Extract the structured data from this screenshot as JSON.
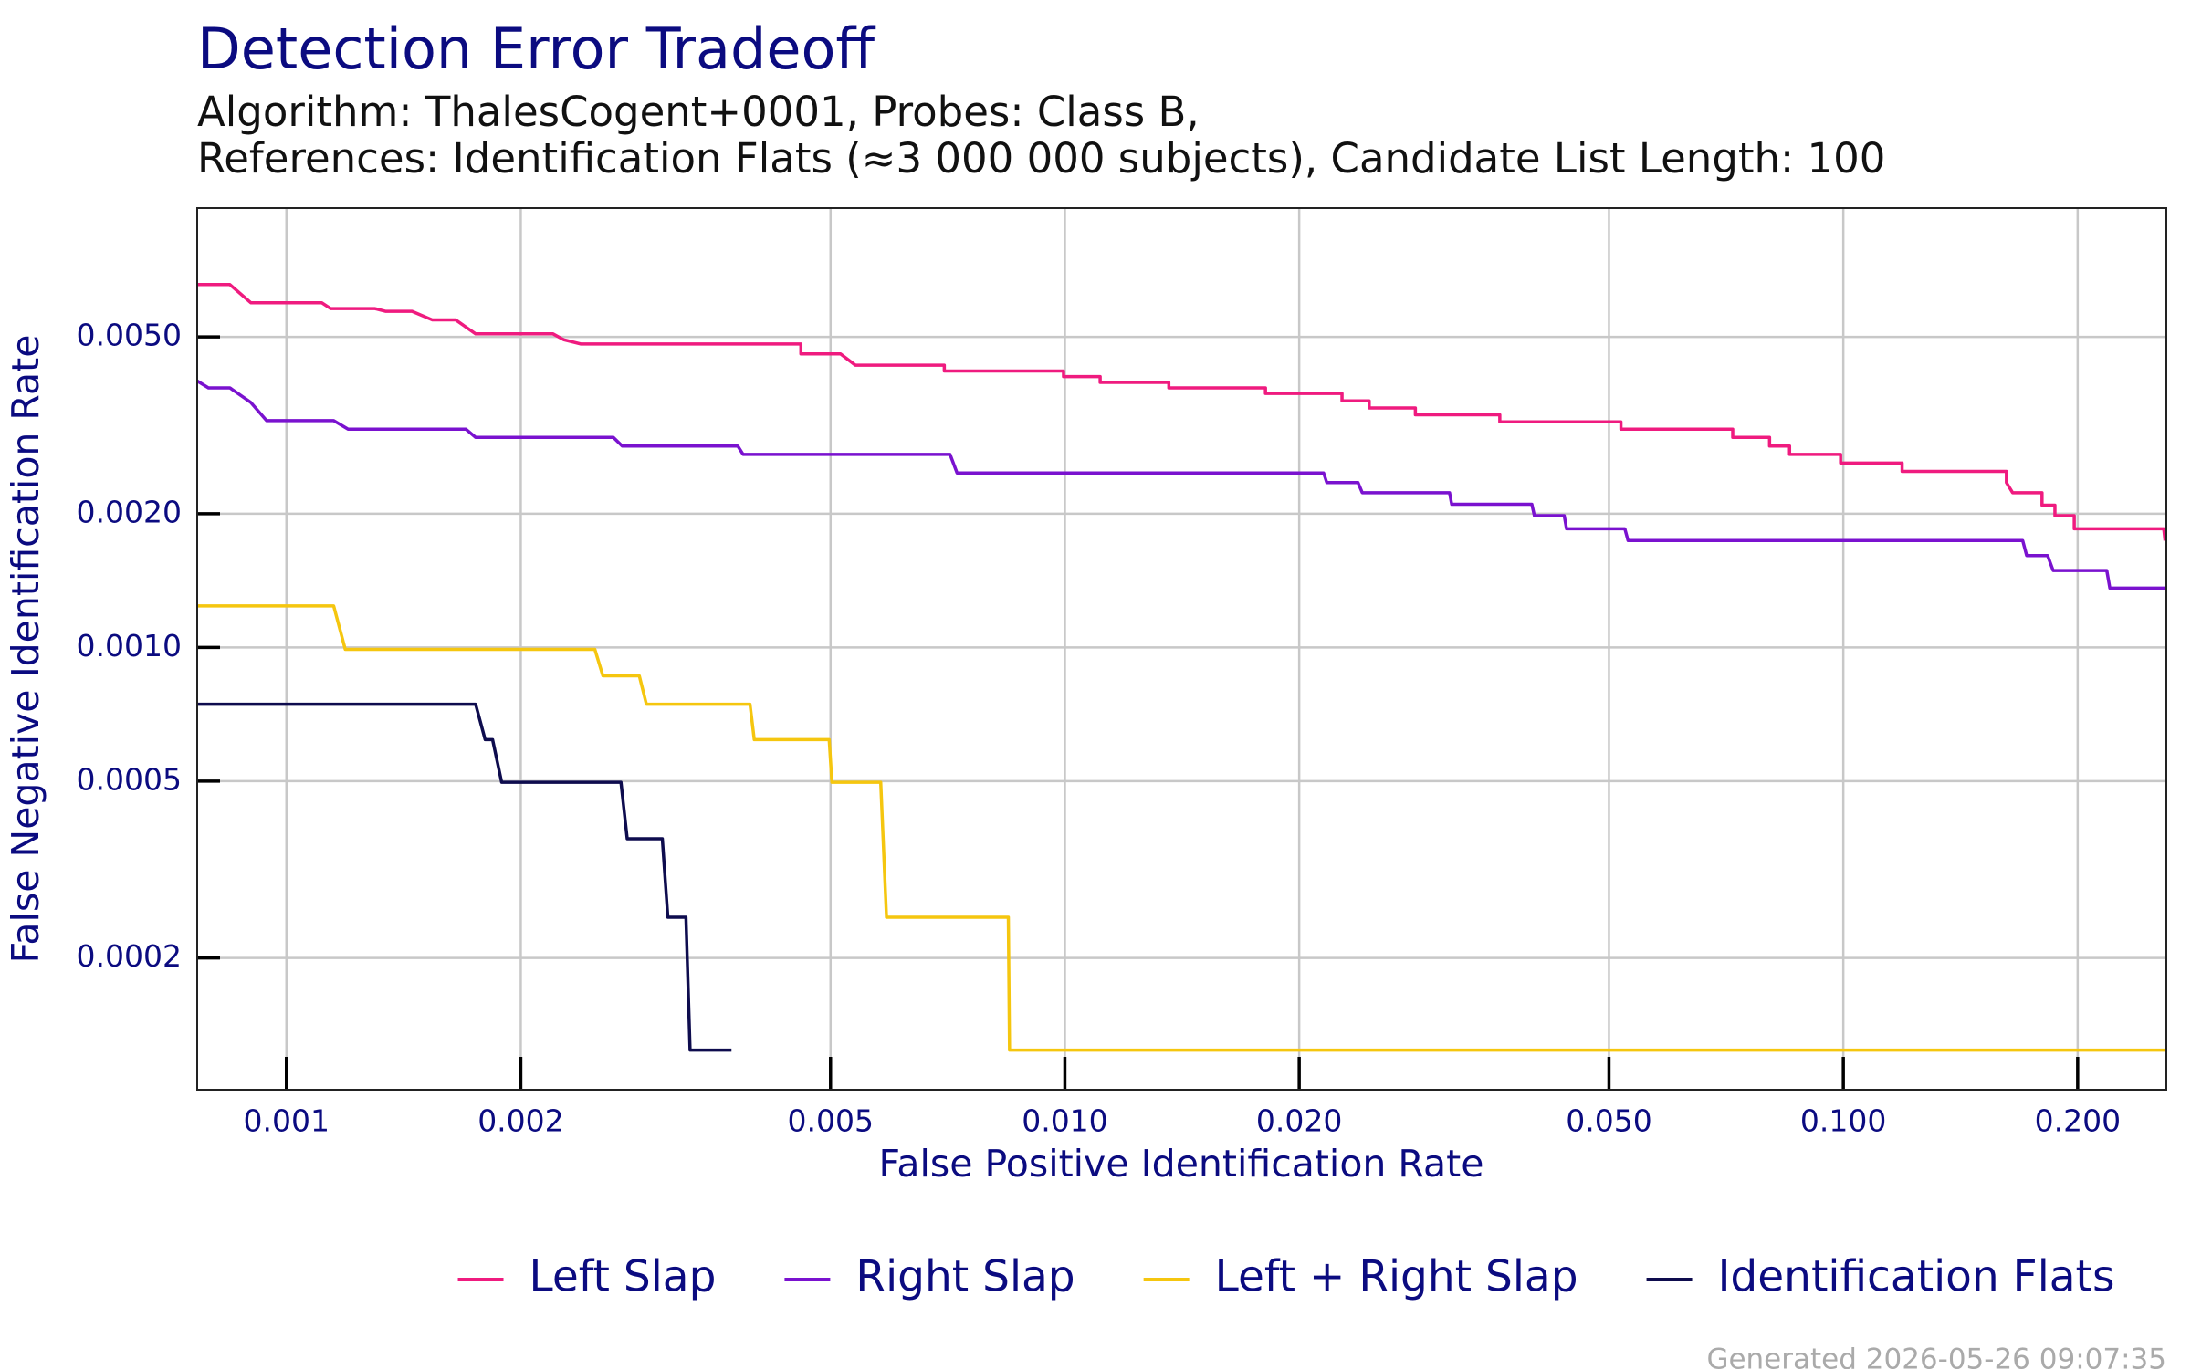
{
  "chart_data": {
    "type": "line",
    "title": "Detection Error Tradeoff",
    "subtitle": [
      "Algorithm: ThalesCogent+0001, Probes: Class B,",
      "References: Identification Flats (≈3 000 000 subjects), Candidate List Length: 100"
    ],
    "x_label": "False Positive Identification Rate",
    "y_label": "False Negative Identification Rate",
    "footnote": "Generated 2026-05-26 09:07:35",
    "xscale": "log",
    "yscale": "log",
    "grid": true,
    "legend": "bottom",
    "xlim": [
      0.000768,
      0.26
    ],
    "ylim": [
      0.000101,
      0.00975
    ],
    "xticks": [
      0.001,
      0.002,
      0.005,
      {
        "value": 0.01,
        "label": "0.010"
      },
      {
        "value": 0.02,
        "label": "0.020"
      },
      {
        "value": 0.05,
        "label": "0.050"
      },
      {
        "value": 0.1,
        "label": "0.100"
      },
      {
        "value": 0.2,
        "label": "0.200"
      }
    ],
    "yticks": [
      0.0002,
      0.0005,
      {
        "value": 0.001,
        "label": "0.0010"
      },
      {
        "value": 0.002,
        "label": "0.0020"
      },
      {
        "value": 0.005,
        "label": "0.0050"
      }
    ],
    "series": [
      {
        "name": "Left Slap",
        "color": "#ef1b7f",
        "x": [
          0.000768,
          0.000846,
          0.0009,
          0.00111,
          0.00114,
          0.0013,
          0.00134,
          0.00145,
          0.00154,
          0.00165,
          0.00175,
          0.0022,
          0.00227,
          0.00239,
          0.00458,
          0.00458,
          0.00515,
          0.00538,
          0.007,
          0.007,
          0.00996,
          0.00996,
          0.0111,
          0.0111,
          0.0136,
          0.0136,
          0.0181,
          0.0181,
          0.0227,
          0.0227,
          0.0246,
          0.0246,
          0.0282,
          0.0282,
          0.0362,
          0.0362,
          0.0518,
          0.0518,
          0.0721,
          0.0721,
          0.0804,
          0.0804,
          0.0853,
          0.0853,
          0.0992,
          0.0992,
          0.119,
          0.119,
          0.162,
          0.162,
          0.165,
          0.18,
          0.18,
          0.187,
          0.187,
          0.198,
          0.198,
          0.258,
          0.259
        ],
        "values": [
          0.00656,
          0.00656,
          0.00597,
          0.00597,
          0.00579,
          0.00579,
          0.00571,
          0.00571,
          0.00546,
          0.00546,
          0.00508,
          0.00508,
          0.00493,
          0.00482,
          0.00482,
          0.00458,
          0.00458,
          0.00432,
          0.00432,
          0.00419,
          0.00419,
          0.00407,
          0.00407,
          0.00395,
          0.00395,
          0.00384,
          0.00384,
          0.00373,
          0.00373,
          0.00359,
          0.00359,
          0.00346,
          0.00346,
          0.00334,
          0.00334,
          0.00322,
          0.00322,
          0.0031,
          0.0031,
          0.00297,
          0.00297,
          0.00284,
          0.00284,
          0.00272,
          0.00272,
          0.0026,
          0.0026,
          0.00249,
          0.00249,
          0.00235,
          0.00223,
          0.00223,
          0.00209,
          0.00209,
          0.00198,
          0.00198,
          0.00185,
          0.00185,
          0.00174
        ]
      },
      {
        "name": "Right Slap",
        "color": "#7a12cf",
        "x": [
          0.000768,
          0.000794,
          0.000846,
          0.0009,
          0.000943,
          0.00115,
          0.0012,
          0.0017,
          0.00175,
          0.00263,
          0.0027,
          0.0038,
          0.00386,
          0.00712,
          0.00727,
          0.0215,
          0.0217,
          0.0238,
          0.0241,
          0.0312,
          0.0314,
          0.0398,
          0.0401,
          0.0438,
          0.0441,
          0.0524,
          0.0529,
          0.17,
          0.172,
          0.183,
          0.186,
          0.218,
          0.22,
          0.26
        ],
        "values": [
          0.00398,
          0.00384,
          0.00384,
          0.00356,
          0.00324,
          0.00324,
          0.0031,
          0.0031,
          0.00297,
          0.00297,
          0.00284,
          0.00284,
          0.00272,
          0.00272,
          0.00247,
          0.00247,
          0.00235,
          0.00235,
          0.00223,
          0.00223,
          0.0021,
          0.0021,
          0.00198,
          0.00198,
          0.00185,
          0.00185,
          0.00174,
          0.00174,
          0.00161,
          0.00161,
          0.00149,
          0.00149,
          0.00136,
          0.00136
        ]
      },
      {
        "name": "Left + Right Slap",
        "color": "#f5c60f",
        "x": [
          0.000768,
          0.00115,
          0.00119,
          0.00249,
          0.00255,
          0.00284,
          0.0029,
          0.00394,
          0.00399,
          0.00498,
          0.00502,
          0.0058,
          0.0059,
          0.00846,
          0.00849,
          0.26
        ],
        "values": [
          0.00124,
          0.00124,
          0.00099,
          0.00099,
          0.000863,
          0.000863,
          0.000745,
          0.000745,
          0.00062,
          0.00062,
          0.000497,
          0.000497,
          0.000247,
          0.000247,
          0.000124,
          0.000124
        ]
      },
      {
        "name": "Identification Flats",
        "color": "#0e0c4e",
        "x": [
          0.000768,
          0.00175,
          0.0018,
          0.00184,
          0.00189,
          0.00269,
          0.00274,
          0.00304,
          0.00309,
          0.00326,
          0.0033,
          0.00373
        ],
        "values": [
          0.000745,
          0.000745,
          0.00062,
          0.00062,
          0.000497,
          0.000497,
          0.000371,
          0.000371,
          0.000247,
          0.000247,
          0.000124,
          0.000124
        ]
      }
    ]
  }
}
